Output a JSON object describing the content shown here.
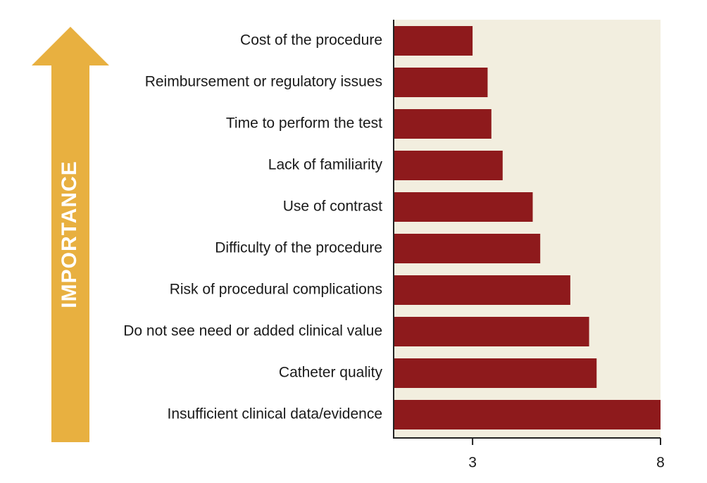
{
  "side_label": "IMPORTANCE",
  "colors": {
    "arrow": "#E8B040",
    "bar": "#8E1A1C",
    "plot_background": "#F2EEDF",
    "axis": "#222222"
  },
  "chart_data": {
    "type": "bar",
    "orientation": "horizontal",
    "categories": [
      "Cost of the procedure",
      "Reimbursement or regulatory issues",
      "Time to perform the test",
      "Lack of familiarity",
      "Use of contrast",
      "Difficulty of the procedure",
      "Risk of procedural complications",
      "Do not see need or added clinical value",
      "Catheter quality",
      "Insufficient clinical data/evidence"
    ],
    "values": [
      3.0,
      3.4,
      3.5,
      3.8,
      4.6,
      4.8,
      5.6,
      6.1,
      6.3,
      8.0
    ],
    "xlim": [
      0.9,
      8.0
    ],
    "xticks": [
      3,
      8
    ],
    "title": "",
    "xlabel": "",
    "ylabel": ""
  }
}
